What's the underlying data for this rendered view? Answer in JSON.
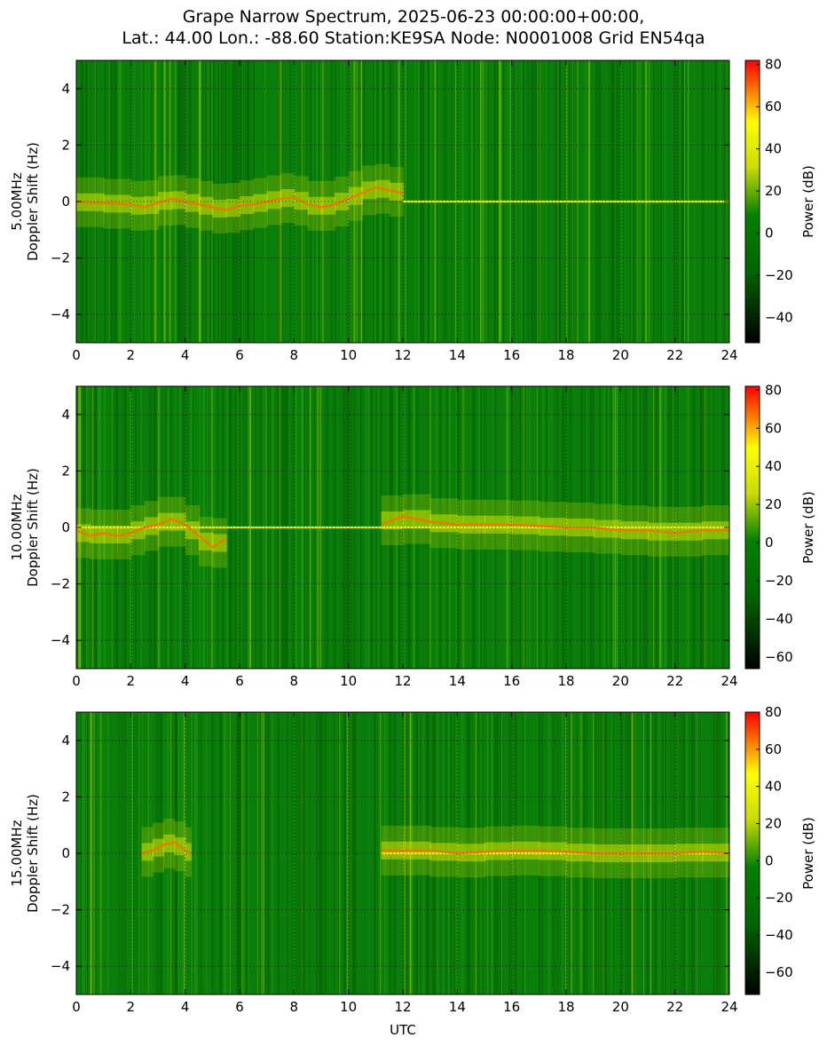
{
  "title": [
    "Grape Narrow Spectrum, 2025-06-23 00:00:00+00:00,",
    "Lat.: 44.00 Lon.: -88.60 Station:KE9SA Node: N0001008 Grid EN54qa"
  ],
  "colors": {
    "cmap": [
      "#000000",
      "#006400",
      "#008000",
      "#c8dc00",
      "#ffff00",
      "#ff0000"
    ],
    "grid": "#000000"
  },
  "chart_data": [
    {
      "type": "heatmap",
      "panel": "5.00MHz",
      "xlabel": "",
      "ylabel": [
        "5.00MHz",
        "Doppler Shift (Hz)"
      ],
      "xlim": [
        0,
        24
      ],
      "ylim": [
        -5,
        5
      ],
      "xticks": [
        0,
        2,
        4,
        6,
        8,
        10,
        12,
        14,
        16,
        18,
        20,
        22,
        24
      ],
      "yticks": [
        -4,
        -2,
        0,
        2,
        4
      ],
      "colorbar": {
        "label": "Power (dB)",
        "range": [
          -52,
          82
        ],
        "ticks": [
          -40,
          -20,
          0,
          20,
          40,
          60,
          80
        ]
      },
      "grid": true,
      "carrier_trace": {
        "utc": [
          0,
          1,
          2,
          2.5,
          3,
          3.5,
          4,
          4.5,
          5,
          5.5,
          6,
          6.5,
          7,
          7.5,
          8,
          8.5,
          9,
          9.5,
          10,
          10.5,
          11,
          11.5,
          12
        ],
        "doppler_hz": [
          0.0,
          -0.05,
          -0.1,
          -0.2,
          -0.05,
          0.1,
          0.0,
          -0.1,
          -0.2,
          -0.3,
          -0.15,
          -0.1,
          0.0,
          0.1,
          0.15,
          -0.1,
          -0.2,
          -0.1,
          0.1,
          0.3,
          0.5,
          0.4,
          0.3
        ]
      },
      "steady_line": {
        "from_utc": 12,
        "to_utc": 24,
        "doppler_hz": 0
      }
    },
    {
      "type": "heatmap",
      "panel": "10.00MHz",
      "xlabel": "",
      "ylabel": [
        "10.00MHz",
        "Doppler Shift (Hz)"
      ],
      "xlim": [
        0,
        24
      ],
      "ylim": [
        -5,
        5
      ],
      "xticks": [
        0,
        2,
        4,
        6,
        8,
        10,
        12,
        14,
        16,
        18,
        20,
        22,
        24
      ],
      "yticks": [
        -4,
        -2,
        0,
        2,
        4
      ],
      "colorbar": {
        "label": "Power (dB)",
        "range": [
          -66,
          82
        ],
        "ticks": [
          -60,
          -40,
          -20,
          0,
          20,
          40,
          60,
          80
        ]
      },
      "grid": true,
      "carrier_trace": {
        "utc": [
          0,
          0.5,
          1,
          1.5,
          2,
          2.5,
          3,
          3.5,
          4,
          4.5,
          5,
          5.5,
          11.2,
          12,
          13,
          14,
          15,
          16,
          17,
          18,
          19,
          20,
          21,
          22,
          23,
          24
        ],
        "doppler_hz": [
          -0.1,
          -0.3,
          -0.2,
          -0.3,
          -0.2,
          0.0,
          0.1,
          0.3,
          0.1,
          -0.3,
          -0.7,
          -0.4,
          0.1,
          0.4,
          0.2,
          0.1,
          0.1,
          0.1,
          0.05,
          0.0,
          0.0,
          -0.1,
          -0.1,
          -0.2,
          -0.1,
          -0.1
        ]
      },
      "steady_line": {
        "from_utc": 0,
        "to_utc": 24,
        "doppler_hz": 0
      }
    },
    {
      "type": "heatmap",
      "panel": "15.00MHz",
      "xlabel": "UTC",
      "ylabel": [
        "15.00MHz",
        "Doppler Shift (Hz)"
      ],
      "xlim": [
        0,
        24
      ],
      "ylim": [
        -5,
        5
      ],
      "xticks": [
        0,
        2,
        4,
        6,
        8,
        10,
        12,
        14,
        16,
        18,
        20,
        22,
        24
      ],
      "yticks": [
        -4,
        -2,
        0,
        2,
        4
      ],
      "colorbar": {
        "label": "Power (dB)",
        "range": [
          -72,
          80
        ],
        "ticks": [
          -60,
          -40,
          -20,
          0,
          20,
          40,
          60,
          80
        ]
      },
      "grid": true,
      "carrier_trace": {
        "utc": [
          2.4,
          2.8,
          3.2,
          3.6,
          4.0,
          4.2,
          11.2,
          12,
          13,
          14,
          15,
          16,
          17,
          18,
          19,
          20,
          21,
          22,
          23,
          24
        ],
        "doppler_hz": [
          0.0,
          0.1,
          0.3,
          0.4,
          0.1,
          0.0,
          0.1,
          0.1,
          0.1,
          0.0,
          0.05,
          0.1,
          0.1,
          0.05,
          0.0,
          0.0,
          0.0,
          0.0,
          0.05,
          0.0
        ]
      },
      "steady_line": {
        "from_utc": 11.2,
        "to_utc": 24,
        "doppler_hz": 0
      }
    }
  ]
}
